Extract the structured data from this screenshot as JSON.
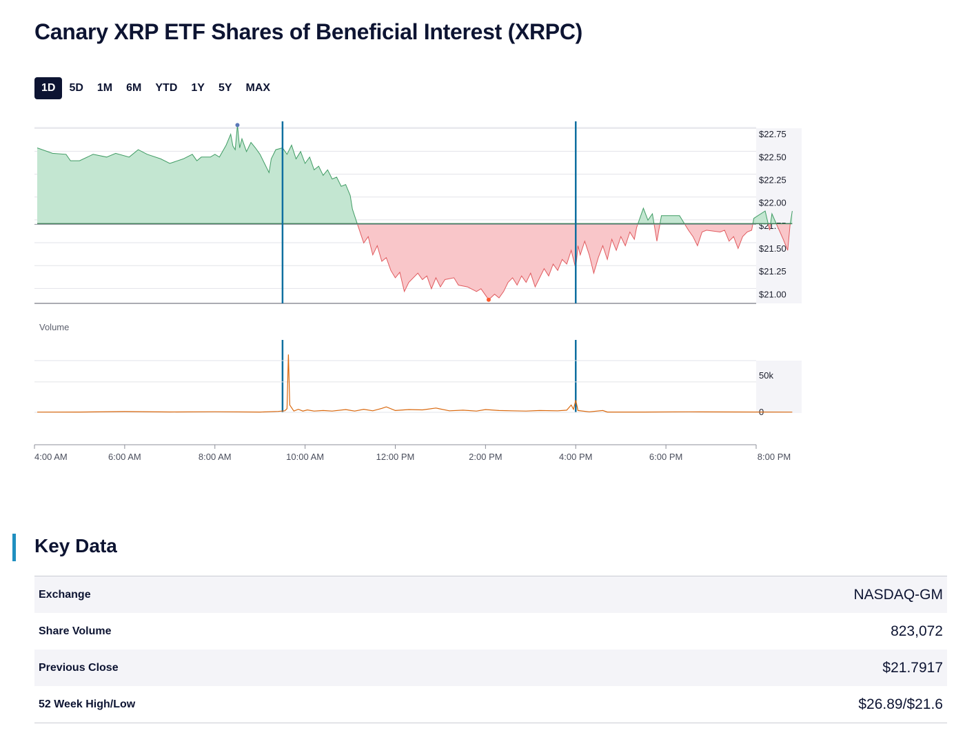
{
  "page": {
    "title": "Canary XRP ETF Shares of Beneficial Interest (XRPC)"
  },
  "range_tabs": [
    {
      "label": "1D",
      "active": true
    },
    {
      "label": "5D",
      "active": false
    },
    {
      "label": "1M",
      "active": false
    },
    {
      "label": "6M",
      "active": false
    },
    {
      "label": "YTD",
      "active": false
    },
    {
      "label": "1Y",
      "active": false
    },
    {
      "label": "5Y",
      "active": false
    },
    {
      "label": "MAX",
      "active": false
    }
  ],
  "chart_data": {
    "type": "area",
    "title": "Canary XRP ETF Shares of Beneficial Interest (XRPC)",
    "x_unit": "hour of day (24h)",
    "x_range": [
      4,
      20
    ],
    "x_tick_values": [
      4,
      6,
      8,
      10,
      12,
      14,
      16,
      18,
      20
    ],
    "x_tick_labels": [
      "4:00 AM",
      "6:00 AM",
      "8:00 AM",
      "10:00 AM",
      "12:00 PM",
      "2:00 PM",
      "4:00 PM",
      "6:00 PM",
      "8:00 PM"
    ],
    "market_open": 9.5,
    "market_close": 16,
    "price": {
      "ylim": [
        20.92,
        22.88
      ],
      "y_tick_values": [
        22.75,
        22.5,
        22.25,
        22.0,
        21.75,
        21.5,
        21.25,
        21.0
      ],
      "y_tick_labels": [
        "$22.75",
        "$22.50",
        "$22.25",
        "$22.00",
        "$21.75",
        "$21.50",
        "$21.25",
        "$21.00"
      ],
      "baseline": 21.7917,
      "colors": {
        "up_line": "#3f9b63",
        "up_fill": "#c3e6d1",
        "down_line": "#e05a5e",
        "down_fill": "#f9c6c9",
        "high_marker": "#5b78b8",
        "low_marker": "#ff5a2c"
      },
      "high_marker": {
        "x": 8.5,
        "y": 22.87
      },
      "low_marker": {
        "x": 14.07,
        "y": 20.96
      },
      "series": [
        {
          "x": 4.05,
          "y": 22.62
        },
        {
          "x": 4.4,
          "y": 22.56
        },
        {
          "x": 4.7,
          "y": 22.55
        },
        {
          "x": 4.8,
          "y": 22.48
        },
        {
          "x": 5.0,
          "y": 22.48
        },
        {
          "x": 5.3,
          "y": 22.55
        },
        {
          "x": 5.6,
          "y": 22.52
        },
        {
          "x": 5.8,
          "y": 22.56
        },
        {
          "x": 6.1,
          "y": 22.52
        },
        {
          "x": 6.3,
          "y": 22.6
        },
        {
          "x": 6.5,
          "y": 22.55
        },
        {
          "x": 6.8,
          "y": 22.5
        },
        {
          "x": 7.0,
          "y": 22.45
        },
        {
          "x": 7.3,
          "y": 22.5
        },
        {
          "x": 7.5,
          "y": 22.55
        },
        {
          "x": 7.6,
          "y": 22.48
        },
        {
          "x": 7.7,
          "y": 22.52
        },
        {
          "x": 7.9,
          "y": 22.52
        },
        {
          "x": 8.0,
          "y": 22.55
        },
        {
          "x": 8.1,
          "y": 22.52
        },
        {
          "x": 8.25,
          "y": 22.65
        },
        {
          "x": 8.35,
          "y": 22.77
        },
        {
          "x": 8.4,
          "y": 22.64
        },
        {
          "x": 8.45,
          "y": 22.6
        },
        {
          "x": 8.5,
          "y": 22.87
        },
        {
          "x": 8.55,
          "y": 22.62
        },
        {
          "x": 8.6,
          "y": 22.72
        },
        {
          "x": 8.7,
          "y": 22.58
        },
        {
          "x": 8.8,
          "y": 22.68
        },
        {
          "x": 8.9,
          "y": 22.62
        },
        {
          "x": 9.0,
          "y": 22.55
        },
        {
          "x": 9.1,
          "y": 22.45
        },
        {
          "x": 9.2,
          "y": 22.35
        },
        {
          "x": 9.25,
          "y": 22.5
        },
        {
          "x": 9.35,
          "y": 22.6
        },
        {
          "x": 9.5,
          "y": 22.62
        },
        {
          "x": 9.6,
          "y": 22.55
        },
        {
          "x": 9.7,
          "y": 22.65
        },
        {
          "x": 9.8,
          "y": 22.5
        },
        {
          "x": 9.9,
          "y": 22.58
        },
        {
          "x": 10.0,
          "y": 22.45
        },
        {
          "x": 10.1,
          "y": 22.52
        },
        {
          "x": 10.2,
          "y": 22.38
        },
        {
          "x": 10.3,
          "y": 22.42
        },
        {
          "x": 10.4,
          "y": 22.32
        },
        {
          "x": 10.5,
          "y": 22.38
        },
        {
          "x": 10.6,
          "y": 22.28
        },
        {
          "x": 10.7,
          "y": 22.3
        },
        {
          "x": 10.8,
          "y": 22.2
        },
        {
          "x": 10.9,
          "y": 22.22
        },
        {
          "x": 11.0,
          "y": 22.1
        },
        {
          "x": 11.05,
          "y": 21.95
        },
        {
          "x": 11.15,
          "y": 21.8
        },
        {
          "x": 11.3,
          "y": 21.58
        },
        {
          "x": 11.4,
          "y": 21.65
        },
        {
          "x": 11.5,
          "y": 21.45
        },
        {
          "x": 11.6,
          "y": 21.55
        },
        {
          "x": 11.7,
          "y": 21.38
        },
        {
          "x": 11.8,
          "y": 21.42
        },
        {
          "x": 11.9,
          "y": 21.28
        },
        {
          "x": 12.0,
          "y": 21.2
        },
        {
          "x": 12.1,
          "y": 21.26
        },
        {
          "x": 12.2,
          "y": 21.05
        },
        {
          "x": 12.3,
          "y": 21.15
        },
        {
          "x": 12.5,
          "y": 21.25
        },
        {
          "x": 12.6,
          "y": 21.18
        },
        {
          "x": 12.7,
          "y": 21.22
        },
        {
          "x": 12.8,
          "y": 21.08
        },
        {
          "x": 12.9,
          "y": 21.2
        },
        {
          "x": 13.0,
          "y": 21.1
        },
        {
          "x": 13.1,
          "y": 21.18
        },
        {
          "x": 13.3,
          "y": 21.2
        },
        {
          "x": 13.4,
          "y": 21.12
        },
        {
          "x": 13.6,
          "y": 21.1
        },
        {
          "x": 13.8,
          "y": 21.05
        },
        {
          "x": 13.9,
          "y": 21.08
        },
        {
          "x": 14.07,
          "y": 20.96
        },
        {
          "x": 14.2,
          "y": 21.02
        },
        {
          "x": 14.3,
          "y": 20.98
        },
        {
          "x": 14.4,
          "y": 21.05
        },
        {
          "x": 14.5,
          "y": 21.15
        },
        {
          "x": 14.6,
          "y": 21.2
        },
        {
          "x": 14.7,
          "y": 21.12
        },
        {
          "x": 14.8,
          "y": 21.22
        },
        {
          "x": 14.9,
          "y": 21.15
        },
        {
          "x": 15.0,
          "y": 21.25
        },
        {
          "x": 15.1,
          "y": 21.1
        },
        {
          "x": 15.2,
          "y": 21.2
        },
        {
          "x": 15.3,
          "y": 21.3
        },
        {
          "x": 15.4,
          "y": 21.22
        },
        {
          "x": 15.5,
          "y": 21.35
        },
        {
          "x": 15.6,
          "y": 21.28
        },
        {
          "x": 15.7,
          "y": 21.4
        },
        {
          "x": 15.8,
          "y": 21.35
        },
        {
          "x": 15.9,
          "y": 21.5
        },
        {
          "x": 15.95,
          "y": 21.4
        },
        {
          "x": 16.0,
          "y": 21.3
        },
        {
          "x": 16.05,
          "y": 21.55
        },
        {
          "x": 16.1,
          "y": 21.45
        },
        {
          "x": 16.2,
          "y": 21.6
        },
        {
          "x": 16.3,
          "y": 21.45
        },
        {
          "x": 16.4,
          "y": 21.25
        },
        {
          "x": 16.5,
          "y": 21.42
        },
        {
          "x": 16.6,
          "y": 21.55
        },
        {
          "x": 16.7,
          "y": 21.4
        },
        {
          "x": 16.8,
          "y": 21.62
        },
        {
          "x": 16.9,
          "y": 21.5
        },
        {
          "x": 17.0,
          "y": 21.65
        },
        {
          "x": 17.1,
          "y": 21.55
        },
        {
          "x": 17.2,
          "y": 21.7
        },
        {
          "x": 17.3,
          "y": 21.62
        },
        {
          "x": 17.35,
          "y": 21.75
        },
        {
          "x": 17.5,
          "y": 21.96
        },
        {
          "x": 17.6,
          "y": 21.83
        },
        {
          "x": 17.7,
          "y": 21.9
        },
        {
          "x": 17.8,
          "y": 21.6
        },
        {
          "x": 17.9,
          "y": 21.88
        },
        {
          "x": 18.0,
          "y": 21.88
        },
        {
          "x": 18.3,
          "y": 21.88
        },
        {
          "x": 18.5,
          "y": 21.72
        },
        {
          "x": 18.6,
          "y": 21.65
        },
        {
          "x": 18.7,
          "y": 21.55
        },
        {
          "x": 18.8,
          "y": 21.7
        },
        {
          "x": 18.9,
          "y": 21.72
        },
        {
          "x": 19.2,
          "y": 21.7
        },
        {
          "x": 19.3,
          "y": 21.72
        },
        {
          "x": 19.4,
          "y": 21.6
        },
        {
          "x": 19.5,
          "y": 21.65
        },
        {
          "x": 19.6,
          "y": 21.52
        },
        {
          "x": 19.7,
          "y": 21.65
        },
        {
          "x": 19.8,
          "y": 21.7
        },
        {
          "x": 19.9,
          "y": 21.72
        },
        {
          "x": 19.95,
          "y": 21.85
        },
        {
          "x": 20.2,
          "y": 21.93
        },
        {
          "x": 20.3,
          "y": 21.72
        },
        {
          "x": 20.35,
          "y": 21.9
        },
        {
          "x": 20.42,
          "y": 21.82
        },
        {
          "x": 20.6,
          "y": 21.62
        },
        {
          "x": 20.7,
          "y": 21.5
        },
        {
          "x": 20.75,
          "y": 21.77
        },
        {
          "x": 20.8,
          "y": 21.93
        }
      ]
    },
    "volume": {
      "label": "Volume",
      "ylim": [
        0,
        85000
      ],
      "y_tick_values": [
        50000,
        0
      ],
      "y_tick_labels": [
        "50k",
        "0"
      ],
      "color": "#d9660a",
      "series": [
        {
          "x": 4.05,
          "y": 300
        },
        {
          "x": 5.0,
          "y": 500
        },
        {
          "x": 6.0,
          "y": 1200
        },
        {
          "x": 7.0,
          "y": 600
        },
        {
          "x": 8.0,
          "y": 900
        },
        {
          "x": 9.0,
          "y": 500
        },
        {
          "x": 9.4,
          "y": 1500
        },
        {
          "x": 9.55,
          "y": 2500
        },
        {
          "x": 9.6,
          "y": 6000
        },
        {
          "x": 9.63,
          "y": 95000
        },
        {
          "x": 9.66,
          "y": 12000
        },
        {
          "x": 9.75,
          "y": 2000
        },
        {
          "x": 9.85,
          "y": 5000
        },
        {
          "x": 9.95,
          "y": 2000
        },
        {
          "x": 10.05,
          "y": 4000
        },
        {
          "x": 10.2,
          "y": 2000
        },
        {
          "x": 10.4,
          "y": 3000
        },
        {
          "x": 10.6,
          "y": 2000
        },
        {
          "x": 10.9,
          "y": 4500
        },
        {
          "x": 11.1,
          "y": 2000
        },
        {
          "x": 11.3,
          "y": 5000
        },
        {
          "x": 11.5,
          "y": 2500
        },
        {
          "x": 11.7,
          "y": 6500
        },
        {
          "x": 11.8,
          "y": 9000
        },
        {
          "x": 12.0,
          "y": 3000
        },
        {
          "x": 12.3,
          "y": 4500
        },
        {
          "x": 12.6,
          "y": 4000
        },
        {
          "x": 12.9,
          "y": 7000
        },
        {
          "x": 13.2,
          "y": 2500
        },
        {
          "x": 13.5,
          "y": 3500
        },
        {
          "x": 13.8,
          "y": 2000
        },
        {
          "x": 14.0,
          "y": 4500
        },
        {
          "x": 14.3,
          "y": 3000
        },
        {
          "x": 14.6,
          "y": 2500
        },
        {
          "x": 14.9,
          "y": 2000
        },
        {
          "x": 15.2,
          "y": 3000
        },
        {
          "x": 15.6,
          "y": 2500
        },
        {
          "x": 15.8,
          "y": 3500
        },
        {
          "x": 15.9,
          "y": 12000
        },
        {
          "x": 15.95,
          "y": 5000
        },
        {
          "x": 16.0,
          "y": 20000
        },
        {
          "x": 16.05,
          "y": 3000
        },
        {
          "x": 16.3,
          "y": 800
        },
        {
          "x": 16.6,
          "y": 3000
        },
        {
          "x": 16.7,
          "y": 500
        },
        {
          "x": 17.5,
          "y": 400
        },
        {
          "x": 18.5,
          "y": 800
        },
        {
          "x": 19.5,
          "y": 600
        },
        {
          "x": 20.8,
          "y": 300
        }
      ]
    }
  },
  "key_data": {
    "title": "Key Data",
    "rows": [
      {
        "label": "Exchange",
        "value": "NASDAQ-GM"
      },
      {
        "label": "Share Volume",
        "value": "823,072"
      },
      {
        "label": "Previous Close",
        "value": "$21.7917"
      },
      {
        "label": "52 Week High/Low",
        "value": "$26.89/$21.6"
      }
    ]
  }
}
